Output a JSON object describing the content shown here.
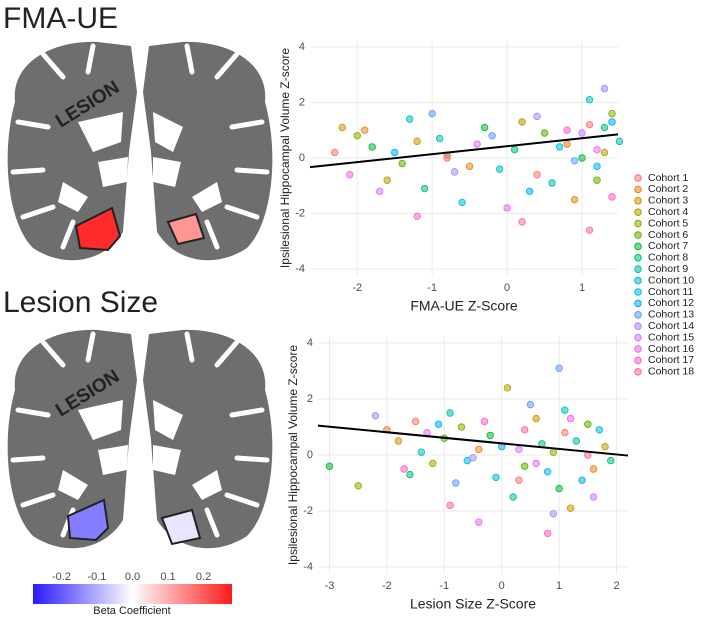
{
  "panels": [
    {
      "title": "FMA-UE",
      "lesion_label": "LESION",
      "hippocampus_beta": {
        "left": 0.26,
        "right": 0.13
      }
    },
    {
      "title": "Lesion Size",
      "lesion_label": "LESION",
      "hippocampus_beta": {
        "left": -0.16,
        "right": -0.03
      }
    }
  ],
  "colorbar": {
    "label": "Beta Coefficient",
    "lim": [
      -0.28,
      0.28
    ],
    "ticks": [
      -0.2,
      -0.1,
      {
        "value": 0,
        "label": "0.0"
      },
      0.1,
      0.2
    ]
  },
  "chart_data": [
    {
      "type": "scatter",
      "x_label": "FMA-UE Z-Score",
      "y_label": "Ipsilesional Hippocampal Volume Z-score",
      "xlim": [
        -2.63,
        1.48
      ],
      "ylim": [
        -4.25,
        4.25
      ],
      "xticks": [
        -2,
        -1,
        0,
        1
      ],
      "yticks": [
        -4,
        -2,
        0,
        2,
        4
      ],
      "grid": true,
      "legend": "right",
      "fit": {
        "x": [
          -2.63,
          1.48
        ],
        "y": [
          -0.33,
          0.85
        ]
      },
      "series": [
        {
          "name": "Cohort 1",
          "color": "#F8766D",
          "x": [
            -2.3,
            0.4,
            1.1
          ],
          "values": [
            0.2,
            -0.6,
            1.2
          ]
        },
        {
          "name": "Cohort 2",
          "color": "#E7851E",
          "x": [
            -1.9,
            -0.5,
            0.8
          ],
          "values": [
            1.0,
            -0.3,
            0.5
          ]
        },
        {
          "name": "Cohort 3",
          "color": "#D09400",
          "x": [
            -2.2,
            -1.2,
            0.9
          ],
          "values": [
            1.1,
            0.6,
            -1.5
          ]
        },
        {
          "name": "Cohort 4",
          "color": "#B2A100",
          "x": [
            -1.6,
            0.2,
            1.3
          ],
          "values": [
            -0.8,
            1.3,
            0.2
          ]
        },
        {
          "name": "Cohort 5",
          "color": "#8EAB00",
          "x": [
            -2.0,
            -0.8,
            1.4
          ],
          "values": [
            0.8,
            0.1,
            1.6
          ]
        },
        {
          "name": "Cohort 6",
          "color": "#5BB300",
          "x": [
            -1.4,
            0.5,
            1.2
          ],
          "values": [
            -0.2,
            0.9,
            -0.8
          ]
        },
        {
          "name": "Cohort 7",
          "color": "#00BA38",
          "x": [
            -1.8,
            -0.3,
            1.0
          ],
          "values": [
            0.4,
            1.1,
            0.0
          ]
        },
        {
          "name": "Cohort 8",
          "color": "#00BF74",
          "x": [
            -1.1,
            0.1,
            1.3
          ],
          "values": [
            -1.1,
            0.3,
            1.1
          ]
        },
        {
          "name": "Cohort 9",
          "color": "#00C0A3",
          "x": [
            -0.9,
            0.6,
            1.5
          ],
          "values": [
            0.7,
            -0.9,
            0.6
          ]
        },
        {
          "name": "Cohort 10",
          "color": "#00BFC4",
          "x": [
            -1.3,
            -0.1,
            1.1
          ],
          "values": [
            1.4,
            -0.4,
            2.1
          ]
        },
        {
          "name": "Cohort 11",
          "color": "#00B8E5",
          "x": [
            -0.6,
            0.7,
            1.2
          ],
          "values": [
            -1.6,
            0.4,
            -0.3
          ]
        },
        {
          "name": "Cohort 12",
          "color": "#00ACFC",
          "x": [
            -1.5,
            0.3,
            1.4
          ],
          "values": [
            0.2,
            -1.2,
            1.3
          ]
        },
        {
          "name": "Cohort 13",
          "color": "#619CFF",
          "x": [
            -1.0,
            -0.2,
            0.9
          ],
          "values": [
            1.6,
            0.8,
            -0.1
          ]
        },
        {
          "name": "Cohort 14",
          "color": "#A58AFF",
          "x": [
            -0.7,
            0.4,
            1.3
          ],
          "values": [
            -0.5,
            1.5,
            2.5
          ]
        },
        {
          "name": "Cohort 15",
          "color": "#D078FF",
          "x": [
            -1.7,
            -0.4,
            1.0
          ],
          "values": [
            -1.2,
            0.5,
            0.9
          ]
        },
        {
          "name": "Cohort 16",
          "color": "#F066EA",
          "x": [
            -2.1,
            0.0,
            1.2
          ],
          "values": [
            -0.6,
            -1.8,
            0.3
          ]
        },
        {
          "name": "Cohort 17",
          "color": "#FF61C9",
          "x": [
            -1.2,
            0.8,
            1.4
          ],
          "values": [
            -2.1,
            1.0,
            -1.4
          ]
        },
        {
          "name": "Cohort 18",
          "color": "#FF6A98",
          "x": [
            -0.8,
            0.2,
            1.1
          ],
          "values": [
            0.0,
            -2.3,
            -2.6
          ]
        }
      ]
    },
    {
      "type": "scatter",
      "x_label": "Lesion Size Z-Score",
      "y_label": "Ipsilesional Hippocampal Volume Z-score",
      "xlim": [
        -3.2,
        2.2
      ],
      "ylim": [
        -4.25,
        4.25
      ],
      "xticks": [
        -3,
        -2,
        -1,
        0,
        1,
        2
      ],
      "yticks": [
        -4,
        -2,
        0,
        2,
        4
      ],
      "grid": true,
      "fit": {
        "x": [
          -3.2,
          2.2
        ],
        "y": [
          1.05,
          -0.02
        ]
      },
      "series": [
        {
          "name": "Cohort 1",
          "color": "#F8766D",
          "x": [
            -1.5,
            0.3,
            1.1
          ],
          "values": [
            1.2,
            -0.9,
            0.8
          ]
        },
        {
          "name": "Cohort 2",
          "color": "#E7851E",
          "x": [
            -2.0,
            -0.4,
            1.6
          ],
          "values": [
            0.9,
            0.2,
            -0.5
          ]
        },
        {
          "name": "Cohort 3",
          "color": "#D09400",
          "x": [
            -1.8,
            0.6,
            1.2
          ],
          "values": [
            0.5,
            1.3,
            -1.9
          ]
        },
        {
          "name": "Cohort 4",
          "color": "#B2A100",
          "x": [
            -1.2,
            0.1,
            1.8
          ],
          "values": [
            -0.3,
            2.4,
            0.3
          ]
        },
        {
          "name": "Cohort 5",
          "color": "#8EAB00",
          "x": [
            -2.5,
            -0.7,
            0.9
          ],
          "values": [
            -1.1,
            1.0,
            0.1
          ]
        },
        {
          "name": "Cohort 6",
          "color": "#5BB300",
          "x": [
            -1.0,
            0.4,
            1.5
          ],
          "values": [
            0.6,
            -0.4,
            1.1
          ]
        },
        {
          "name": "Cohort 7",
          "color": "#00BA38",
          "x": [
            -3.0,
            -0.2,
            1.0
          ],
          "values": [
            -0.4,
            0.7,
            -1.2
          ]
        },
        {
          "name": "Cohort 8",
          "color": "#00BF74",
          "x": [
            -1.6,
            0.7,
            1.9
          ],
          "values": [
            -0.7,
            0.4,
            -0.2
          ]
        },
        {
          "name": "Cohort 9",
          "color": "#00C0A3",
          "x": [
            -0.9,
            0.2,
            1.3
          ],
          "values": [
            1.5,
            -1.5,
            0.5
          ]
        },
        {
          "name": "Cohort 10",
          "color": "#00BFC4",
          "x": [
            -1.4,
            -0.1,
            1.1
          ],
          "values": [
            0.1,
            -0.8,
            1.6
          ]
        },
        {
          "name": "Cohort 11",
          "color": "#00B8E5",
          "x": [
            -0.6,
            0.8,
            1.7
          ],
          "values": [
            -0.2,
            -0.6,
            0.9
          ]
        },
        {
          "name": "Cohort 12",
          "color": "#00ACFC",
          "x": [
            -1.1,
            0.0,
            1.4
          ],
          "values": [
            1.1,
            0.3,
            -0.9
          ]
        },
        {
          "name": "Cohort 13",
          "color": "#619CFF",
          "x": [
            -0.8,
            0.5,
            1.0
          ],
          "values": [
            -1.0,
            1.8,
            3.1
          ]
        },
        {
          "name": "Cohort 14",
          "color": "#A58AFF",
          "x": [
            -2.2,
            -0.5,
            0.9
          ],
          "values": [
            1.4,
            -0.1,
            -2.1
          ]
        },
        {
          "name": "Cohort 15",
          "color": "#D078FF",
          "x": [
            -1.3,
            0.3,
            1.6
          ],
          "values": [
            0.8,
            0.2,
            -1.5
          ]
        },
        {
          "name": "Cohort 16",
          "color": "#F066EA",
          "x": [
            -0.4,
            0.6,
            1.2
          ],
          "values": [
            -2.4,
            -0.3,
            1.3
          ]
        },
        {
          "name": "Cohort 17",
          "color": "#FF61C9",
          "x": [
            -1.7,
            -0.3,
            0.8
          ],
          "values": [
            -0.5,
            1.2,
            -2.8
          ]
        },
        {
          "name": "Cohort 18",
          "color": "#FF6A98",
          "x": [
            -0.9,
            0.4,
            1.5
          ],
          "values": [
            -1.8,
            0.9,
            0.0
          ]
        }
      ]
    }
  ]
}
